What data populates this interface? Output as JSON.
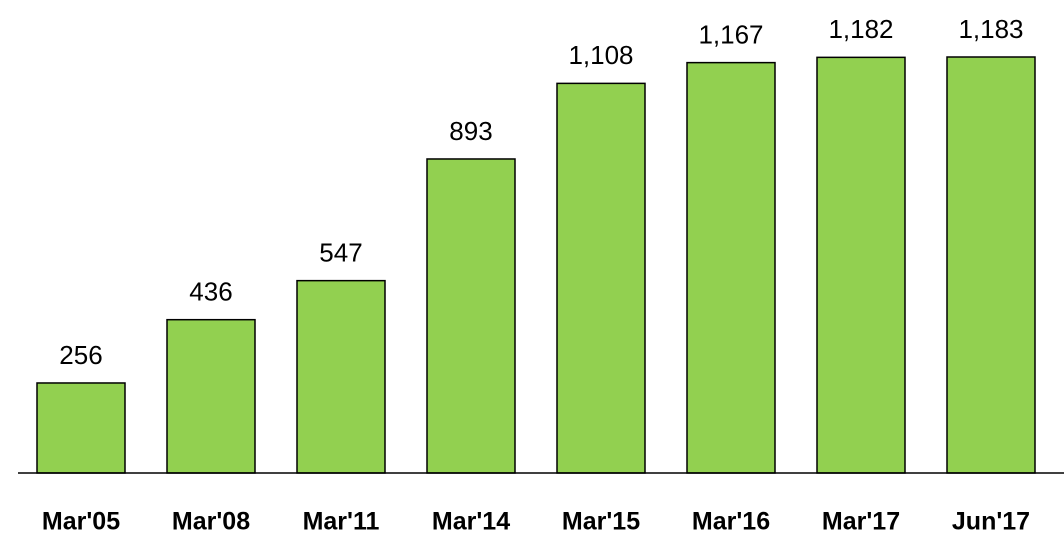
{
  "chart_data": {
    "type": "bar",
    "categories": [
      "Mar'05",
      "Mar'08",
      "Mar'11",
      "Mar'14",
      "Mar'15",
      "Mar'16",
      "Mar'17",
      "Jun'17"
    ],
    "values": [
      256,
      436,
      547,
      893,
      1108,
      1167,
      1182,
      1183
    ],
    "value_labels": [
      "256",
      "436",
      "547",
      "893",
      "1,108",
      "1,167",
      "1,182",
      "1,183"
    ],
    "color": "#92d050"
  }
}
